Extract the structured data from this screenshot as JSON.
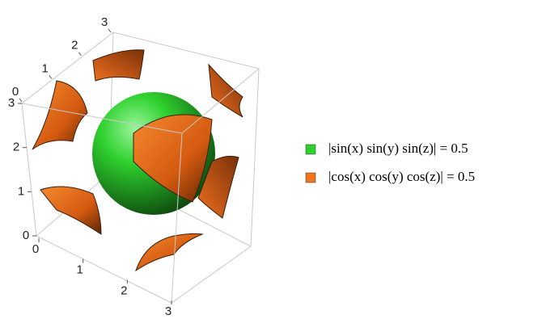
{
  "chart_data": {
    "type": "contour3d",
    "xlim": [
      0,
      3
    ],
    "xticks": [
      0,
      1,
      2,
      3
    ],
    "ylim": [
      0,
      3
    ],
    "yticks": [
      0,
      1,
      2,
      3
    ],
    "zlim": [
      0,
      3
    ],
    "zticks": [
      0,
      1,
      2,
      3
    ],
    "series": [
      {
        "name": "|sin(x) sin(y) sin(z)| = 0.5",
        "color": "#2fd12f"
      },
      {
        "name": "|cos(x) cos(y) cos(z)| = 0.5",
        "color": "#f0741e"
      }
    ]
  }
}
